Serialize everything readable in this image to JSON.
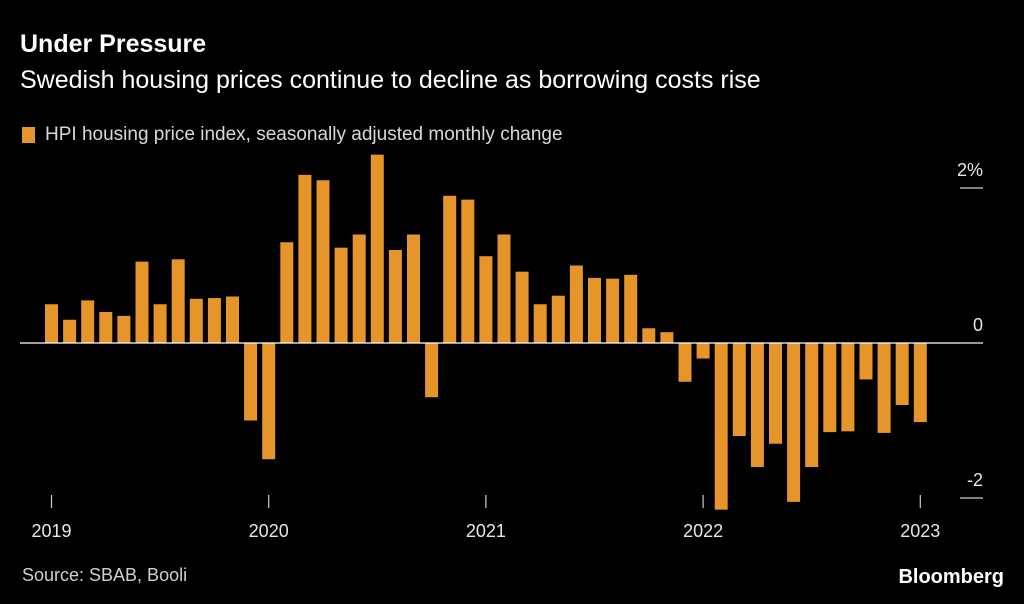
{
  "chart_data": {
    "type": "bar",
    "title": "Under Pressure",
    "subtitle": "Swedish housing prices continue to decline as borrowing costs rise",
    "series": [
      {
        "name": "HPI housing price index, seasonally adjusted monthly change",
        "color": "#e5952a",
        "values": [
          0.5,
          0.3,
          0.55,
          0.4,
          0.35,
          1.05,
          0.5,
          1.08,
          0.57,
          0.58,
          0.6,
          -1.0,
          -1.5,
          1.3,
          2.17,
          2.1,
          1.23,
          1.4,
          2.43,
          1.2,
          1.4,
          -0.7,
          1.9,
          1.85,
          1.12,
          1.4,
          0.92,
          0.5,
          0.61,
          1.0,
          0.84,
          0.83,
          0.88,
          0.19,
          0.14,
          -0.5,
          -0.2,
          -2.15,
          -1.2,
          -1.6,
          -1.3,
          -2.05,
          -1.6,
          -1.15,
          -1.14,
          -0.47,
          -1.16,
          -0.8,
          -1.02
        ]
      }
    ],
    "x_ticks": [
      "2019",
      "2020",
      "2021",
      "2022",
      "2023"
    ],
    "y_ticks": [
      "2%",
      "0",
      "-2"
    ],
    "y_tick_values": [
      2,
      0,
      -2
    ],
    "ylim": [
      -2.2,
      2.5
    ]
  },
  "source": "Source: SBAB, Booli",
  "brand": "Bloomberg"
}
